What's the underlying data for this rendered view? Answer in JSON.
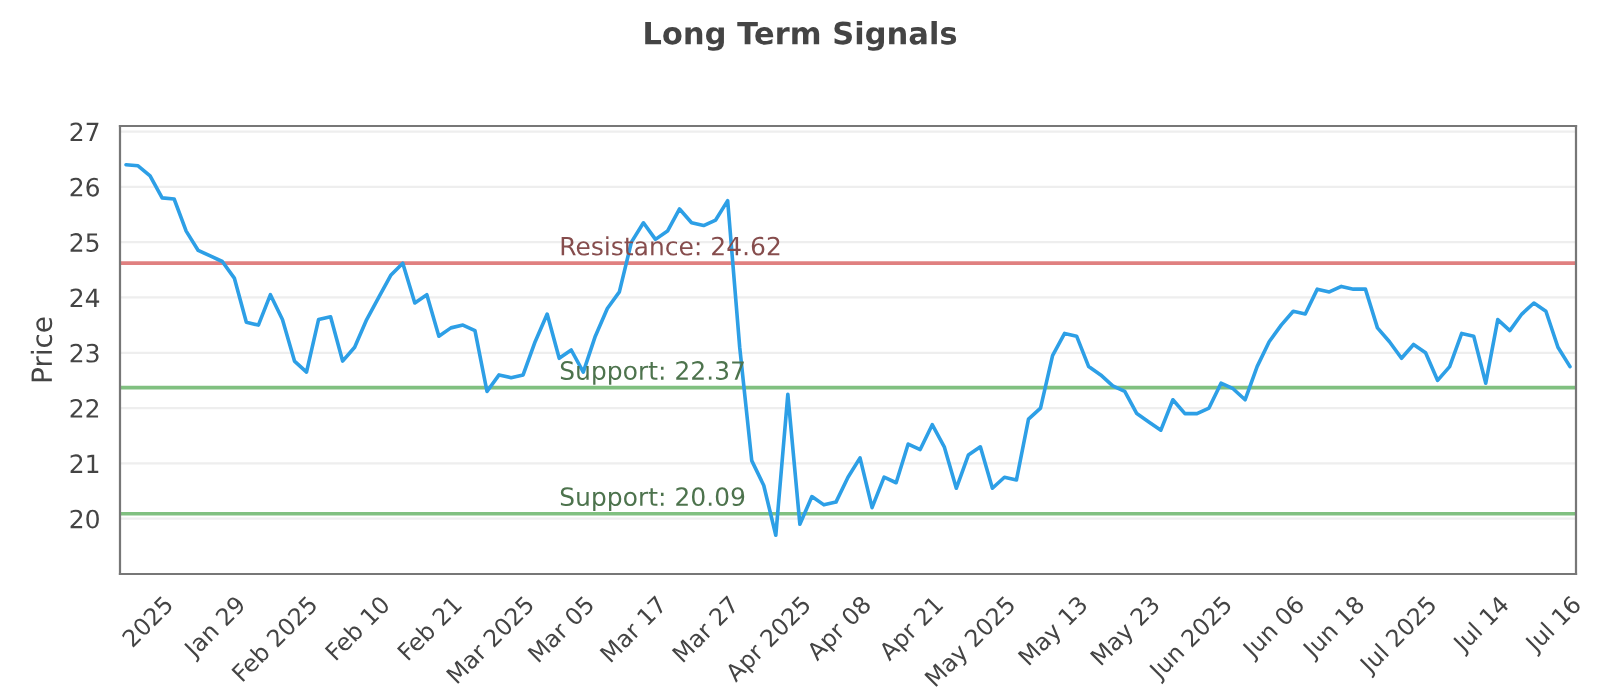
{
  "chart_data": {
    "type": "line",
    "title": "Long Term Signals",
    "ylabel": "Price",
    "categories": [
      null,
      null,
      null,
      "2025",
      null,
      null,
      null,
      null,
      null,
      "Jan 29",
      null,
      null,
      null,
      null,
      null,
      "Feb 2025",
      null,
      null,
      null,
      null,
      null,
      "Feb 10",
      null,
      null,
      null,
      null,
      null,
      "Feb 21",
      null,
      null,
      null,
      null,
      null,
      "Mar 2025",
      null,
      null,
      null,
      null,
      "Mar 05",
      null,
      null,
      null,
      null,
      null,
      "Mar 17",
      null,
      null,
      null,
      null,
      null,
      "Mar 27",
      null,
      null,
      null,
      null,
      null,
      "Apr 2025",
      null,
      null,
      null,
      null,
      "Apr 08",
      null,
      null,
      null,
      null,
      null,
      "Apr 21",
      null,
      null,
      null,
      null,
      null,
      "May 2025",
      null,
      null,
      null,
      null,
      null,
      "May 13",
      null,
      null,
      null,
      null,
      null,
      "May 23",
      null,
      null,
      null,
      null,
      null,
      "Jun 2025",
      null,
      null,
      null,
      null,
      null,
      "Jun 06",
      null,
      null,
      null,
      null,
      "Jun 18",
      null,
      null,
      null,
      null,
      null,
      "Jul 2025",
      null,
      null,
      null,
      null,
      null,
      "Jul 14",
      null,
      null,
      null,
      null,
      null,
      "Jul 16"
    ],
    "series": [
      {
        "color": "#2d9fe6",
        "values": [
          26.4,
          26.38,
          26.2,
          25.8,
          25.78,
          25.2,
          24.85,
          24.75,
          24.65,
          24.35,
          23.55,
          23.5,
          24.05,
          23.6,
          22.85,
          22.65,
          23.6,
          23.65,
          22.85,
          23.1,
          23.6,
          24.0,
          24.4,
          24.62,
          23.9,
          24.05,
          23.3,
          23.45,
          23.5,
          23.4,
          22.3,
          22.6,
          22.55,
          22.6,
          23.2,
          23.7,
          22.9,
          23.05,
          22.65,
          23.3,
          23.8,
          24.1,
          25.0,
          25.35,
          25.05,
          25.2,
          25.6,
          25.35,
          25.3,
          25.4,
          25.75,
          23.1,
          21.05,
          20.6,
          19.7,
          22.25,
          19.9,
          20.4,
          20.25,
          20.3,
          20.75,
          21.1,
          20.2,
          20.75,
          20.65,
          21.35,
          21.25,
          21.7,
          21.3,
          20.55,
          21.15,
          21.3,
          20.55,
          20.75,
          20.7,
          21.8,
          22.0,
          22.95,
          23.35,
          23.3,
          22.75,
          22.6,
          22.4,
          22.3,
          21.9,
          21.75,
          21.6,
          22.15,
          21.9,
          21.9,
          22.0,
          22.45,
          22.35,
          22.15,
          22.75,
          23.2,
          23.5,
          23.75,
          23.7,
          24.15,
          24.1,
          24.2,
          24.15,
          24.15,
          23.45,
          23.2,
          22.9,
          23.15,
          23.0,
          22.5,
          22.75,
          23.35,
          23.3,
          22.45,
          23.6,
          23.4,
          23.7,
          23.9,
          23.75,
          23.1,
          22.75
        ]
      }
    ],
    "ylim": [
      19,
      27.1
    ],
    "yticks": [
      20,
      21,
      22,
      23,
      24,
      25,
      26,
      27
    ],
    "grid": "y",
    "legend": false,
    "marker": "none",
    "line_style": "solid",
    "ref_lines": [
      {
        "axis": "y",
        "value": 24.62,
        "label": "Resistance: 24.62",
        "color": "#e08080"
      },
      {
        "axis": "y",
        "value": 22.37,
        "label": "Support: 22.37",
        "color": "#80c080"
      },
      {
        "axis": "y",
        "value": 20.09,
        "label": "Support: 20.09",
        "color": "#80c080"
      }
    ]
  }
}
